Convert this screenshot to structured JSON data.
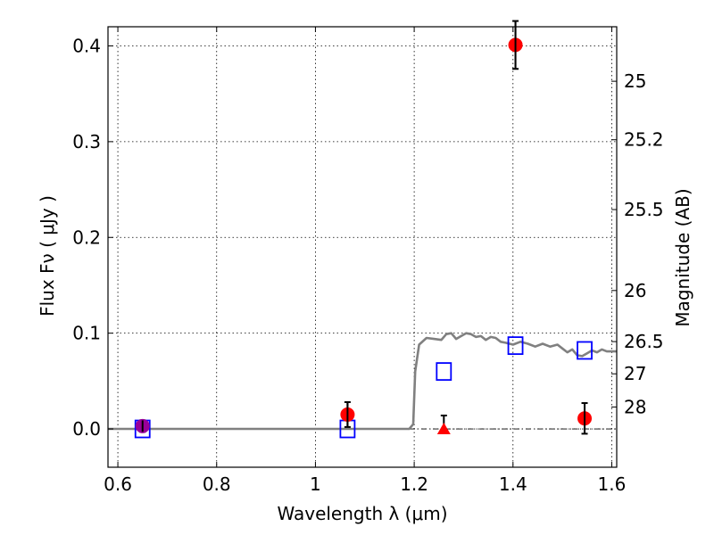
{
  "chart_data": {
    "type": "scatter",
    "title": "",
    "xlabel": "Wavelength  λ (μm)",
    "ylabel": "Flux  Fν  ( μJy )",
    "ylabel_right": "Magnitude (AB)",
    "xlim": [
      0.58,
      1.61
    ],
    "ylim": [
      -0.04,
      0.42
    ],
    "x_ticks": [
      0.6,
      0.8,
      1.0,
      1.2,
      1.4,
      1.6
    ],
    "x_tick_labels": [
      "0.6",
      "0.8",
      "1",
      "1.2",
      "1.4",
      "1.6"
    ],
    "y_ticks": [
      0.0,
      0.1,
      0.2,
      0.3,
      0.4
    ],
    "y_tick_labels": [
      "0.0",
      "0.1",
      "0.2",
      "0.3",
      "0.4"
    ],
    "magnitude_ticks": [
      {
        "label": "25",
        "mag": 25.0
      },
      {
        "label": "25.2",
        "mag": 25.2
      },
      {
        "label": "25.5",
        "mag": 25.5
      },
      {
        "label": "26",
        "mag": 26.0
      },
      {
        "label": "26.5",
        "mag": 26.5
      },
      {
        "label": "27",
        "mag": 27.0
      },
      {
        "label": "28",
        "mag": 28.0
      }
    ],
    "grid": true,
    "zero_line": true,
    "series": [
      {
        "kind": "line",
        "color": "#808080",
        "x": [
          0.58,
          1.19,
          1.198,
          1.202,
          1.21,
          1.225,
          1.24,
          1.255,
          1.265,
          1.275,
          1.285,
          1.295,
          1.305,
          1.315,
          1.325,
          1.335,
          1.345,
          1.355,
          1.365,
          1.375,
          1.385,
          1.4,
          1.415,
          1.43,
          1.445,
          1.46,
          1.475,
          1.49,
          1.5,
          1.51,
          1.52,
          1.53,
          1.54,
          1.55,
          1.56,
          1.57,
          1.58,
          1.59,
          1.6,
          1.61
        ],
        "y": [
          0.0,
          0.0,
          0.005,
          0.06,
          0.088,
          0.095,
          0.094,
          0.093,
          0.099,
          0.1,
          0.094,
          0.097,
          0.1,
          0.099,
          0.096,
          0.097,
          0.093,
          0.096,
          0.095,
          0.091,
          0.09,
          0.088,
          0.091,
          0.089,
          0.086,
          0.089,
          0.086,
          0.088,
          0.084,
          0.08,
          0.083,
          0.077,
          0.076,
          0.079,
          0.082,
          0.08,
          0.083,
          0.081,
          0.081,
          0.081
        ]
      },
      {
        "kind": "model-points",
        "color": "#0000ff",
        "marker": "square",
        "x": [
          0.65,
          1.065,
          1.26,
          1.405,
          1.545
        ],
        "y": [
          0.0,
          0.0,
          0.06,
          0.087,
          0.082
        ]
      },
      {
        "kind": "observed",
        "color": "#ff0000",
        "marker": "circle",
        "x": [
          1.065,
          1.405,
          1.545
        ],
        "y": [
          0.015,
          0.401,
          0.011
        ],
        "yerr": [
          0.013,
          0.025,
          0.016
        ]
      },
      {
        "kind": "observed",
        "color": "#990099",
        "marker": "circle",
        "x": [
          0.65
        ],
        "y": [
          0.003
        ],
        "yerr": [
          0.006
        ]
      },
      {
        "kind": "upper-limit",
        "color": "#ff0000",
        "marker": "triangle",
        "x": [
          1.26
        ],
        "y": [
          0.0
        ],
        "yerr_upper": [
          0.014
        ]
      }
    ]
  }
}
